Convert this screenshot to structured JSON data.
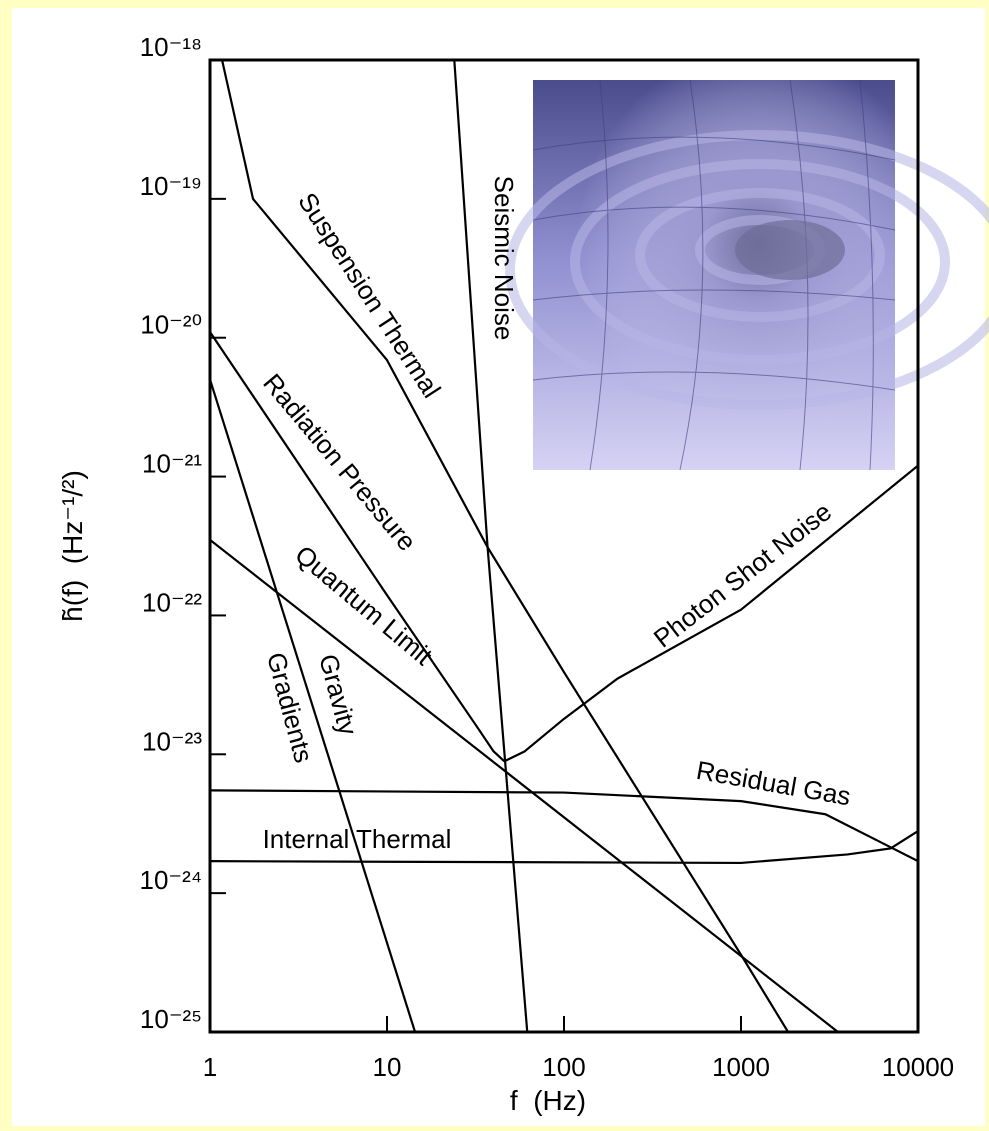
{
  "chart_data": {
    "type": "line",
    "x_label": "f  (Hz)",
    "y_label": "h̃(f)  (Hz⁻¹/²)",
    "x_log": true,
    "y_log": true,
    "xlim": [
      1,
      10000
    ],
    "ylim": [
      1e-25,
      1e-18
    ],
    "xticks": [
      1,
      10,
      100,
      1000,
      10000
    ],
    "yticks": [
      {
        "value": 1e-18,
        "label": "10⁻¹⁸"
      },
      {
        "value": 1e-19,
        "label": "10⁻¹⁹"
      },
      {
        "value": 1e-20,
        "label": "10⁻²⁰"
      },
      {
        "value": 1e-21,
        "label": "10⁻²¹"
      },
      {
        "value": 1e-22,
        "label": "10⁻²²"
      },
      {
        "value": 1e-23,
        "label": "10⁻²³"
      },
      {
        "value": 1e-24,
        "label": "10⁻²⁴"
      },
      {
        "value": 1e-25,
        "label": "10⁻²⁵"
      }
    ],
    "line_color": "#000000",
    "series": [
      {
        "name": "Suspension Thermal",
        "x": [
          1.17,
          1.75,
          10,
          37,
          100,
          1000,
          1845
        ],
        "values": [
          1e-18,
          1e-19,
          6.9e-21,
          3.1e-22,
          3.9e-23,
          3.6e-25,
          1e-25
        ]
      },
      {
        "name": "Seismic Noise",
        "x": [
          24,
          37,
          62
        ],
        "values": [
          1e-18,
          3.1e-22,
          1e-25
        ]
      },
      {
        "name": "Radiation Pressure",
        "x": [
          1,
          10,
          32,
          40,
          46
        ],
        "values": [
          1.1e-20,
          1.4e-22,
          1.6e-23,
          1.05e-23,
          8.9e-24
        ]
      },
      {
        "name": "Quantum Limit",
        "x": [
          1,
          3530
        ],
        "values": [
          3.5e-22,
          1e-25
        ]
      },
      {
        "name": "Gravity Gradients",
        "x": [
          1,
          14.4
        ],
        "values": [
          5e-21,
          1e-25
        ]
      },
      {
        "name": "Photon Shot Noise",
        "x": [
          46,
          60,
          100,
          200,
          1000,
          10000
        ],
        "values": [
          8.9e-24,
          1.05e-23,
          1.8e-23,
          3.5e-23,
          1.1e-22,
          1.2e-21
        ]
      },
      {
        "name": "Residual Gas",
        "x": [
          1,
          100,
          1000,
          3000,
          10000
        ],
        "values": [
          5.5e-24,
          5.3e-24,
          4.6e-24,
          3.7e-24,
          1.7e-24
        ]
      },
      {
        "name": "Internal Thermal",
        "x": [
          1,
          1000,
          4000,
          7000,
          10000
        ],
        "values": [
          1.7e-24,
          1.65e-24,
          1.9e-24,
          2.1e-24,
          2.8e-24
        ]
      }
    ]
  }
}
